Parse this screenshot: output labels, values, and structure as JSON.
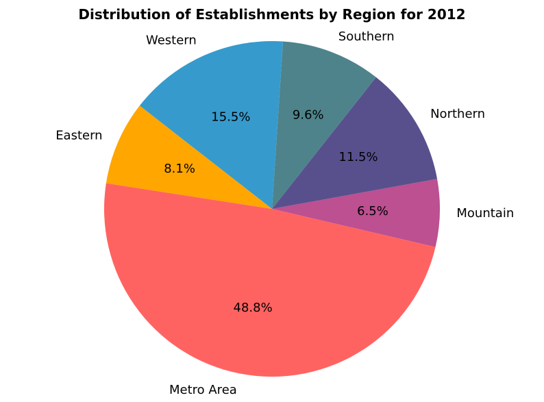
{
  "chart_data": {
    "type": "pie",
    "title": "Distribution of Establishments by Region for 2012",
    "slices": [
      {
        "label": "Metro Area",
        "percent": 48.8,
        "color": "#ff6361"
      },
      {
        "label": "Mountain",
        "percent": 6.5,
        "color": "#bc5090"
      },
      {
        "label": "Northern",
        "percent": 11.5,
        "color": "#58508d"
      },
      {
        "label": "Southern",
        "percent": 9.6,
        "color": "#4e838b"
      },
      {
        "label": "Western",
        "percent": 15.5,
        "color": "#379acc"
      },
      {
        "label": "Eastern",
        "percent": 8.1,
        "color": "#ffa600"
      }
    ],
    "legend": "none"
  }
}
